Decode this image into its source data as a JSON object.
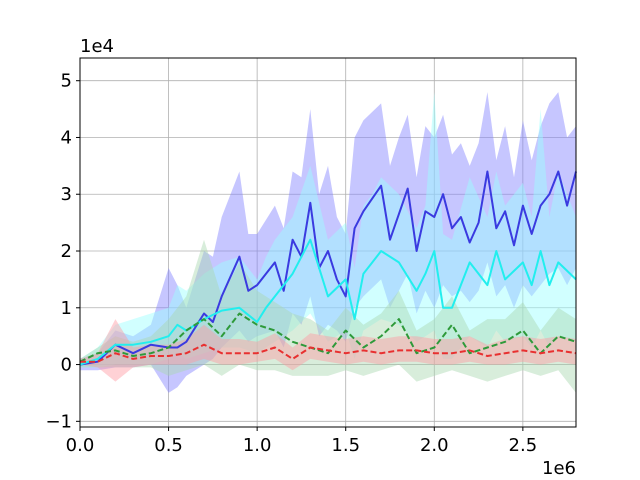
{
  "chart_data": {
    "type": "line",
    "title": "",
    "xlabel": "",
    "ylabel": "",
    "x_multiplier_label": "1e6",
    "y_multiplier_label": "1e4",
    "xlim": [
      0,
      2.8
    ],
    "ylim": [
      -1.1,
      5.4
    ],
    "x_ticks": [
      0.0,
      0.5,
      1.0,
      1.5,
      2.0,
      2.5
    ],
    "x_tick_labels": [
      "0.0",
      "0.5",
      "1.0",
      "1.5",
      "2.0",
      "2.5"
    ],
    "y_ticks": [
      -1,
      0,
      1,
      2,
      3,
      4,
      5
    ],
    "y_tick_labels": [
      "−1",
      "0",
      "1",
      "2",
      "3",
      "4",
      "5"
    ],
    "grid": true,
    "legend": "none",
    "series": [
      {
        "color": "#3a3ae0",
        "band_color": "#8080ff",
        "dash": "solid",
        "x": [
          0.0,
          0.1,
          0.2,
          0.3,
          0.4,
          0.5,
          0.55,
          0.6,
          0.7,
          0.75,
          0.8,
          0.9,
          0.95,
          1.0,
          1.1,
          1.15,
          1.2,
          1.25,
          1.3,
          1.35,
          1.4,
          1.45,
          1.5,
          1.55,
          1.6,
          1.7,
          1.75,
          1.8,
          1.85,
          1.9,
          1.95,
          2.0,
          2.05,
          2.1,
          2.15,
          2.2,
          2.25,
          2.3,
          2.35,
          2.4,
          2.45,
          2.5,
          2.55,
          2.6,
          2.65,
          2.7,
          2.75,
          2.8
        ],
        "y": [
          0.0,
          0.05,
          0.35,
          0.2,
          0.35,
          0.3,
          0.3,
          0.4,
          0.9,
          0.75,
          1.2,
          1.9,
          1.3,
          1.4,
          1.8,
          1.3,
          2.2,
          1.9,
          2.85,
          1.7,
          2.0,
          1.5,
          1.2,
          2.4,
          2.7,
          3.15,
          2.2,
          2.65,
          3.1,
          2.0,
          2.7,
          2.6,
          3.0,
          2.4,
          2.6,
          2.15,
          2.5,
          3.4,
          2.4,
          2.7,
          2.1,
          2.8,
          2.3,
          2.8,
          3.0,
          3.4,
          2.8,
          3.4
        ],
        "lower": [
          -0.1,
          -0.1,
          -0.05,
          -0.05,
          0.0,
          -0.5,
          -0.4,
          -0.2,
          0.0,
          0.1,
          0.3,
          0.6,
          0.4,
          0.5,
          0.6,
          0.3,
          0.9,
          0.7,
          1.2,
          0.5,
          0.7,
          0.6,
          0.4,
          1.0,
          1.2,
          1.5,
          1.0,
          1.3,
          1.6,
          0.9,
          1.3,
          1.0,
          1.4,
          1.2,
          1.3,
          1.1,
          1.3,
          1.8,
          1.2,
          1.4,
          1.0,
          1.4,
          1.2,
          1.4,
          1.6,
          1.7,
          1.4,
          1.7
        ],
        "upper": [
          0.1,
          0.2,
          0.6,
          0.5,
          0.7,
          1.7,
          1.4,
          1.0,
          2.0,
          1.9,
          2.6,
          3.4,
          2.3,
          2.3,
          2.8,
          2.4,
          3.4,
          3.3,
          4.5,
          3.0,
          3.5,
          2.6,
          2.3,
          4.0,
          4.3,
          4.6,
          3.5,
          4.0,
          4.4,
          3.3,
          4.2,
          4.0,
          4.4,
          3.7,
          3.9,
          3.5,
          3.9,
          4.8,
          3.6,
          4.2,
          3.3,
          4.3,
          3.6,
          4.2,
          4.6,
          4.8,
          4.0,
          4.2
        ]
      },
      {
        "color": "#22eeee",
        "band_color": "#99ffff",
        "dash": "solid",
        "x": [
          0.0,
          0.1,
          0.2,
          0.3,
          0.4,
          0.5,
          0.55,
          0.6,
          0.7,
          0.8,
          0.9,
          1.0,
          1.05,
          1.1,
          1.2,
          1.3,
          1.4,
          1.5,
          1.55,
          1.6,
          1.65,
          1.7,
          1.8,
          1.9,
          1.95,
          2.0,
          2.05,
          2.1,
          2.2,
          2.3,
          2.35,
          2.4,
          2.5,
          2.55,
          2.6,
          2.65,
          2.7,
          2.8
        ],
        "y": [
          0.0,
          0.1,
          0.35,
          0.35,
          0.4,
          0.5,
          0.7,
          0.6,
          0.8,
          0.95,
          1.0,
          0.75,
          1.0,
          1.2,
          1.6,
          2.2,
          1.2,
          1.5,
          0.8,
          1.6,
          1.8,
          2.0,
          1.8,
          1.3,
          1.6,
          2.0,
          1.0,
          1.0,
          1.8,
          1.4,
          2.0,
          1.5,
          1.8,
          1.4,
          2.0,
          1.4,
          1.8,
          1.5
        ],
        "lower": [
          -0.05,
          -0.05,
          0.0,
          0.0,
          0.0,
          0.1,
          0.2,
          0.1,
          0.2,
          0.3,
          0.3,
          0.2,
          0.3,
          0.4,
          0.6,
          0.9,
          0.4,
          0.6,
          0.1,
          0.6,
          0.7,
          0.8,
          0.7,
          0.4,
          0.5,
          0.6,
          0.1,
          0.1,
          0.5,
          0.3,
          0.6,
          0.4,
          0.5,
          0.3,
          0.6,
          0.3,
          0.5,
          0.4
        ],
        "upper": [
          0.1,
          0.3,
          0.7,
          0.8,
          0.9,
          1.0,
          1.4,
          1.3,
          1.6,
          1.8,
          1.9,
          1.5,
          1.9,
          2.2,
          2.6,
          3.5,
          2.2,
          2.5,
          1.7,
          2.8,
          3.0,
          3.3,
          3.0,
          2.4,
          2.8,
          4.8,
          2.3,
          2.2,
          3.3,
          2.6,
          3.4,
          2.8,
          3.2,
          2.6,
          4.5,
          2.6,
          3.4,
          2.6
        ]
      },
      {
        "color": "#2e9a3a",
        "band_color": "#a8d8b0",
        "dash": "dashed",
        "x": [
          0.0,
          0.1,
          0.2,
          0.3,
          0.4,
          0.5,
          0.6,
          0.7,
          0.8,
          0.9,
          1.0,
          1.1,
          1.2,
          1.3,
          1.4,
          1.5,
          1.6,
          1.7,
          1.8,
          1.9,
          2.0,
          2.1,
          2.2,
          2.3,
          2.4,
          2.5,
          2.6,
          2.7,
          2.8
        ],
        "y": [
          0.05,
          0.2,
          0.25,
          0.15,
          0.2,
          0.3,
          0.6,
          0.8,
          0.5,
          0.9,
          0.7,
          0.6,
          0.4,
          0.3,
          0.2,
          0.6,
          0.3,
          0.5,
          0.8,
          0.2,
          0.3,
          0.7,
          0.2,
          0.3,
          0.4,
          0.6,
          0.2,
          0.5,
          0.4
        ],
        "lower": [
          -0.05,
          -0.05,
          -0.05,
          -0.05,
          -0.05,
          -0.2,
          -0.1,
          0.0,
          -0.2,
          0.0,
          -0.1,
          -0.1,
          -0.2,
          -0.2,
          -0.2,
          -0.1,
          -0.2,
          -0.1,
          0.0,
          -0.3,
          -0.2,
          -0.1,
          -0.2,
          -0.3,
          -0.2,
          -0.1,
          -0.2,
          -0.1,
          -0.5
        ],
        "upper": [
          0.1,
          0.3,
          0.5,
          0.4,
          0.5,
          0.8,
          1.2,
          2.2,
          1.2,
          1.8,
          1.3,
          1.1,
          0.9,
          0.8,
          0.6,
          1.0,
          0.7,
          0.9,
          1.3,
          0.6,
          0.8,
          1.2,
          0.6,
          0.8,
          0.8,
          1.1,
          0.6,
          1.0,
          0.8
        ]
      },
      {
        "color": "#e83030",
        "band_color": "#ff9aa2",
        "dash": "dashed",
        "x": [
          0.0,
          0.1,
          0.2,
          0.3,
          0.4,
          0.5,
          0.6,
          0.7,
          0.8,
          0.9,
          1.0,
          1.1,
          1.2,
          1.3,
          1.4,
          1.5,
          1.6,
          1.7,
          1.8,
          1.9,
          2.0,
          2.1,
          2.2,
          2.3,
          2.4,
          2.5,
          2.6,
          2.7,
          2.8
        ],
        "y": [
          0.05,
          0.05,
          0.2,
          0.1,
          0.15,
          0.15,
          0.2,
          0.35,
          0.2,
          0.2,
          0.2,
          0.3,
          0.1,
          0.3,
          0.25,
          0.2,
          0.25,
          0.2,
          0.25,
          0.25,
          0.2,
          0.2,
          0.25,
          0.15,
          0.2,
          0.25,
          0.2,
          0.25,
          0.2
        ],
        "lower": [
          0.0,
          -0.05,
          -0.3,
          -0.05,
          0.0,
          0.0,
          0.0,
          0.1,
          0.0,
          0.0,
          0.05,
          0.1,
          -0.1,
          0.1,
          0.05,
          0.0,
          0.05,
          0.0,
          0.05,
          0.05,
          0.0,
          0.0,
          0.05,
          0.0,
          0.0,
          0.05,
          0.0,
          0.05,
          0.0
        ],
        "upper": [
          0.1,
          0.2,
          0.8,
          0.3,
          0.35,
          0.35,
          0.45,
          0.7,
          0.45,
          0.45,
          0.4,
          0.55,
          0.3,
          0.55,
          0.5,
          0.45,
          0.5,
          0.45,
          0.5,
          0.5,
          0.45,
          0.45,
          0.5,
          0.35,
          0.45,
          0.5,
          0.45,
          0.5,
          0.45
        ]
      }
    ]
  }
}
